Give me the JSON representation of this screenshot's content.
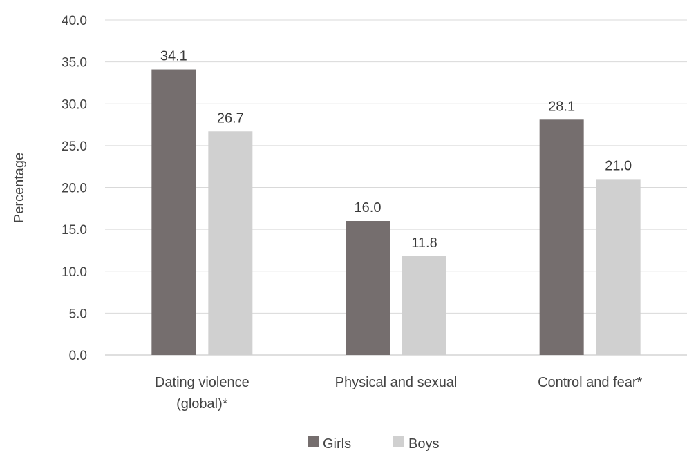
{
  "chart_data": {
    "type": "bar",
    "title": "",
    "xlabel": "",
    "ylabel": "Percentage",
    "ylim": [
      0,
      40
    ],
    "ytick_step": 5,
    "yticks": [
      "0.0",
      "5.0",
      "10.0",
      "15.0",
      "20.0",
      "25.0",
      "30.0",
      "35.0",
      "40.0"
    ],
    "categories": [
      [
        "Dating violence",
        "(global)*"
      ],
      [
        "Physical and sexual"
      ],
      [
        "Control and fear*"
      ]
    ],
    "series": [
      {
        "name": "Girls",
        "color": "#756e6e",
        "values": [
          34.1,
          16.0,
          28.1
        ],
        "labels": [
          "34.1",
          "16.0",
          "28.1"
        ]
      },
      {
        "name": "Boys",
        "color": "#d0d0d0",
        "values": [
          26.7,
          11.8,
          21.0
        ],
        "labels": [
          "26.7",
          "11.8",
          "21.0"
        ]
      }
    ],
    "grid": true,
    "legend": "bottom"
  }
}
